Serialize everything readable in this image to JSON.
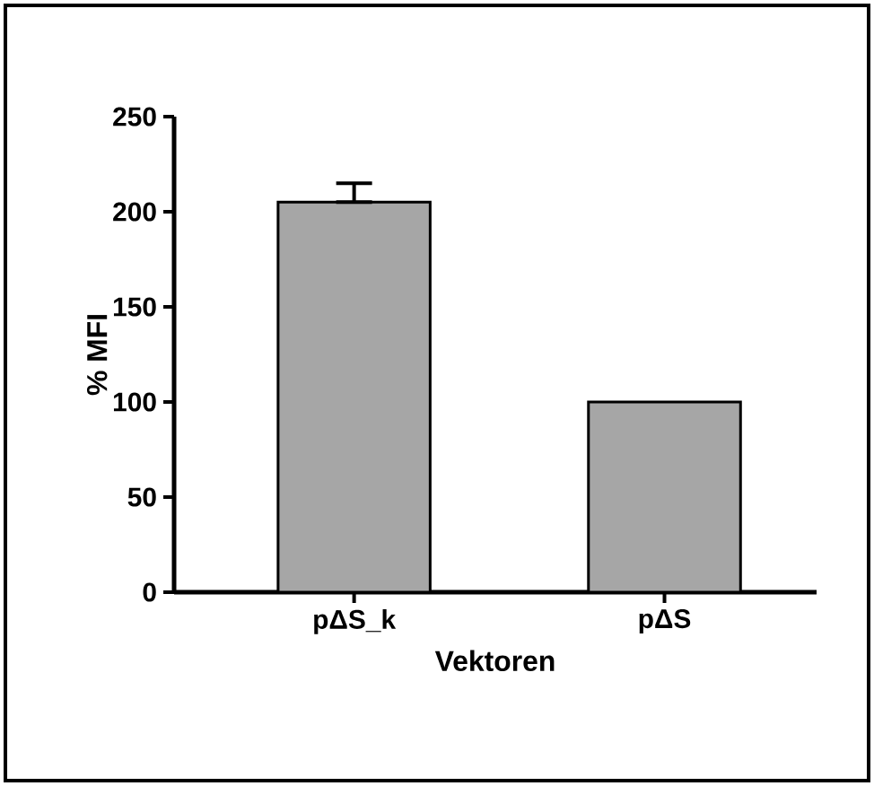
{
  "chart_data": {
    "type": "bar",
    "xlabel": "Vektoren",
    "ylabel": "% MFI",
    "categories": [
      "pΔS_k",
      "pΔS"
    ],
    "values": [
      205,
      100
    ],
    "errors": [
      [
        205,
        215
      ],
      null
    ],
    "color": "#a6a6a6",
    "ylim": [
      0,
      250
    ],
    "yticks": [
      0,
      50,
      100,
      150,
      200,
      250
    ],
    "grid": false
  }
}
